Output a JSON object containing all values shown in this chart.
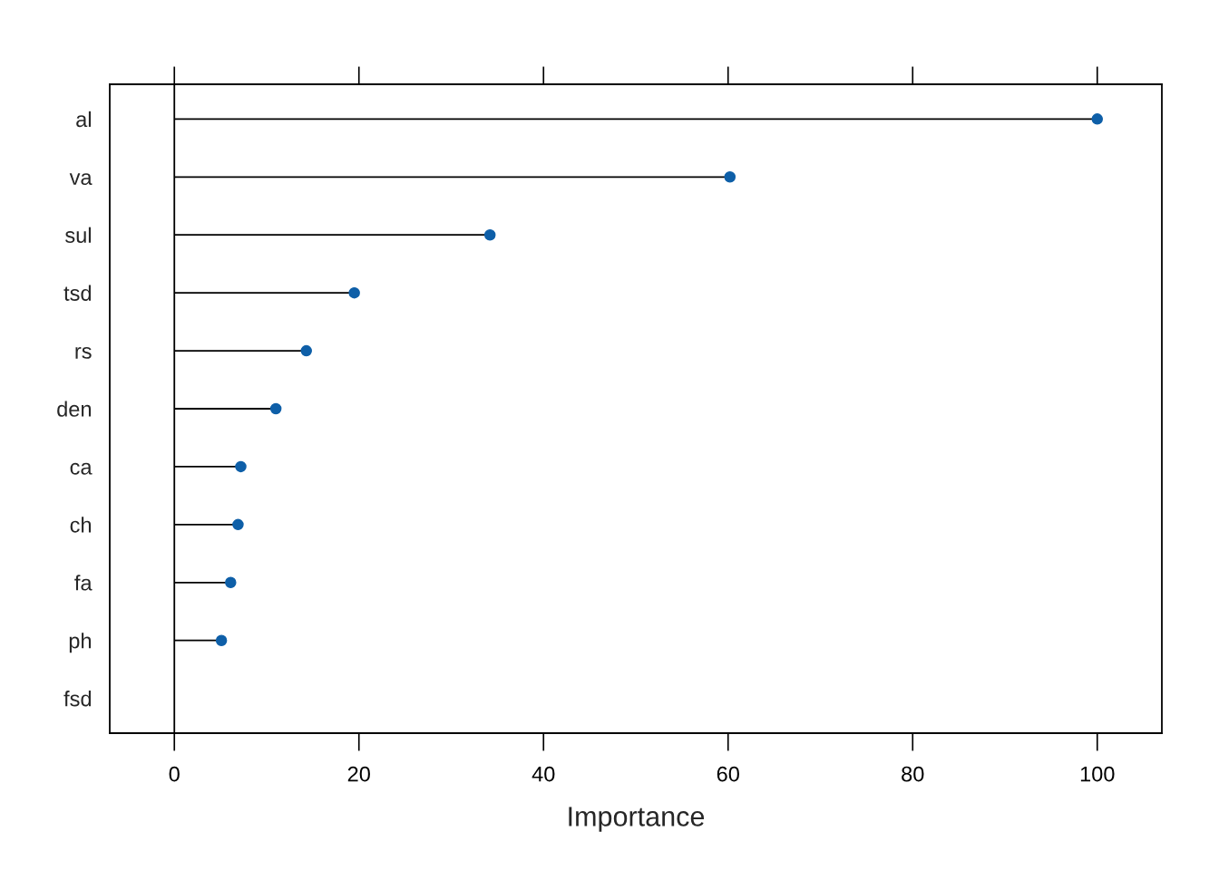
{
  "chart_data": {
    "type": "lollipop",
    "orientation": "horizontal",
    "xlabel": "Importance",
    "categories": [
      "al",
      "va",
      "sul",
      "tsd",
      "rs",
      "den",
      "ca",
      "ch",
      "fa",
      "ph",
      "fsd"
    ],
    "values": [
      100,
      60.2,
      34.2,
      19.5,
      14.3,
      11.0,
      7.2,
      6.9,
      6.1,
      5.1,
      null
    ],
    "color": "#0e5fa8",
    "marker": "circle",
    "xlim": [
      -7,
      107
    ],
    "xticks": [
      0,
      20,
      40,
      60,
      80,
      100
    ],
    "ref_lines": [
      {
        "axis": "x",
        "value": 0,
        "color": "#000000"
      }
    ],
    "grid": false,
    "legend": false
  }
}
